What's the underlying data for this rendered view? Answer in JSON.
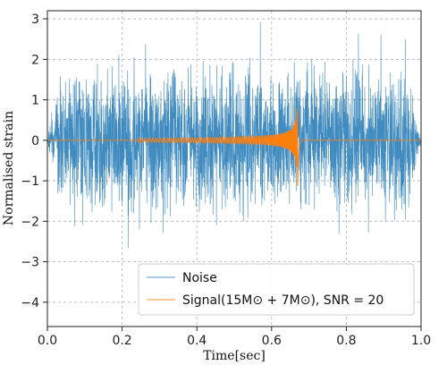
{
  "chart_data": {
    "type": "line",
    "xlabel": "Time[sec]",
    "ylabel": "Normalised strain",
    "xlim": [
      0.0,
      1.0
    ],
    "ylim": [
      -4.6,
      3.2
    ],
    "grid": true,
    "legend_placement": "bottom-right",
    "x_ticks": [
      "0.0",
      "0.2",
      "0.4",
      "0.6",
      "0.8",
      "1.0"
    ],
    "y_ticks": [
      "−4",
      "−3",
      "−2",
      "−1",
      "0",
      "1",
      "2",
      "3"
    ],
    "series": [
      {
        "name": "Noise",
        "color": "#1f77b4",
        "kind": "gaussian noise",
        "approx_peak_amplitude": 3.3,
        "approx_std": 0.8,
        "taper_edges_sec": [
          0.0,
          1.0
        ]
      },
      {
        "name": "Signal(15M⊙ + 7M⊙), SNR = 20",
        "color": "#ff7f0e",
        "kind": "chirp",
        "start_sec": 0.24,
        "merger_sec": 0.67,
        "start_amplitude": 0.05,
        "peak_amplitude": 1.45
      }
    ]
  }
}
